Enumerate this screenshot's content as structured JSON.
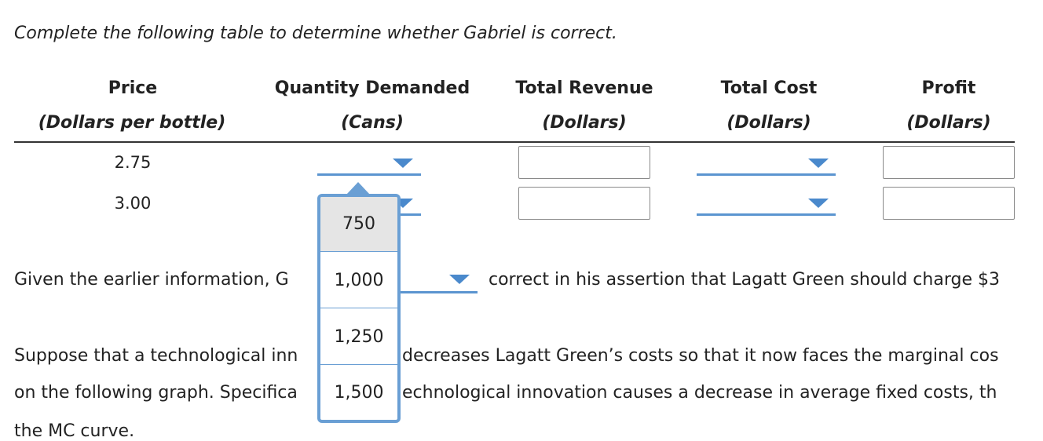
{
  "intro": "Complete the following table to determine whether Gabriel is correct.",
  "table": {
    "headers": [
      {
        "title": "Price",
        "subtitle": "(Dollars per bottle)"
      },
      {
        "title": "Quantity Demanded",
        "subtitle": "(Cans)"
      },
      {
        "title": "Total Revenue",
        "subtitle": "(Dollars)"
      },
      {
        "title": "Total Cost",
        "subtitle": "(Dollars)"
      },
      {
        "title": "Profit",
        "subtitle": "(Dollars)"
      }
    ],
    "rows": [
      {
        "price": "2.75",
        "quantity": "",
        "total_revenue": "",
        "total_cost": "",
        "profit": ""
      },
      {
        "price": "3.00",
        "quantity": "",
        "total_revenue": "",
        "total_cost": "",
        "profit": ""
      }
    ]
  },
  "sentence1": {
    "before": "Given the earlier information, G",
    "selected": "",
    "after": "correct in his assertion that Lagatt Green should charge $3"
  },
  "sentence2": {
    "line1_a": "Suppose that a technological inn",
    "line1_b": "decreases Lagatt Green’s costs so that it now faces the marginal cos",
    "line2_a": "on the following graph. Specifica",
    "line2_b": "echnological innovation causes a decrease in average fixed costs, th",
    "line3": "the MC curve."
  },
  "dropdown_options": [
    "750",
    "1,000",
    "1,250",
    "1,500"
  ],
  "dropdown_selected_index": 0,
  "colors": {
    "accent": "#4a89cc",
    "popup_border": "#6a9fd4",
    "selected_bg": "#e5e5e5"
  }
}
